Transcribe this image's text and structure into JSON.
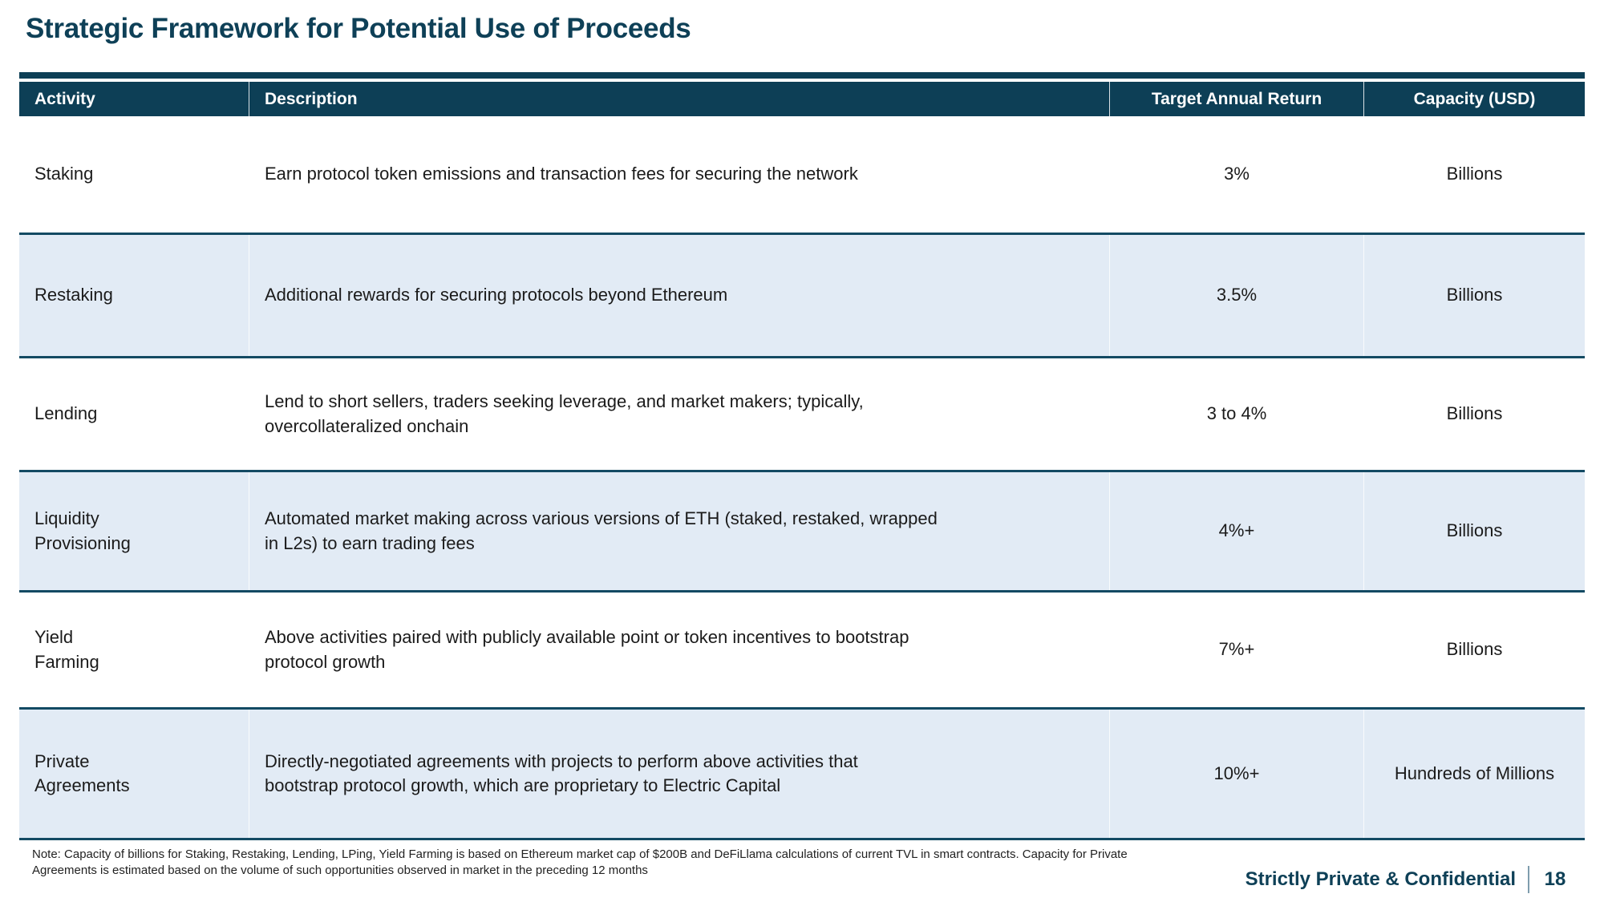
{
  "slide": {
    "title": "Strategic Framework for Potential Use of Proceeds",
    "footnote": "Note: Capacity of billions for Staking, Restaking, Lending, LPing, Yield Farming is based on Ethereum market cap of $200B and DeFiLlama calculations of current TVL in smart contracts. Capacity for Private\nAgreements is estimated based on the volume of such opportunities observed in market in the preceding 12 months",
    "footer": {
      "confidential_label": "Strictly Private & Confidential",
      "page_number": "18"
    }
  },
  "table": {
    "columns": [
      "Activity",
      "Description",
      "Target Annual Return",
      "Capacity (USD)"
    ],
    "rows": [
      {
        "activity": "Staking",
        "description": "Earn protocol token emissions and transaction fees for securing the network",
        "target_return": "3%",
        "capacity": "Billions"
      },
      {
        "activity": "Restaking",
        "description": "Additional rewards for securing protocols beyond Ethereum",
        "target_return": "3.5%",
        "capacity": "Billions"
      },
      {
        "activity": "Lending",
        "description": "Lend to short sellers, traders seeking leverage, and market makers; typically,\novercollateralized onchain",
        "target_return": "3 to 4%",
        "capacity": "Billions"
      },
      {
        "activity": "Liquidity\nProvisioning",
        "description": "Automated market making across various versions of ETH (staked, restaked, wrapped\nin L2s) to earn trading fees",
        "target_return": "4%+",
        "capacity": "Billions"
      },
      {
        "activity": "Yield\nFarming",
        "description": "Above activities paired with publicly available point or token incentives to bootstrap\nprotocol growth",
        "target_return": "7%+",
        "capacity": "Billions"
      },
      {
        "activity": "Private\nAgreements",
        "description": "Directly-negotiated agreements with projects to perform above activities that\nbootstrap protocol growth, which are proprietary to Electric Capital",
        "target_return": "10%+",
        "capacity": "Hundreds of Millions"
      }
    ]
  },
  "colors": {
    "header_bg": "#0d3f56",
    "alt_row_bg": "#e2ebf5",
    "row_border": "#134a63",
    "title_text": "#0e4057",
    "body_text": "#1b1b1b",
    "footer_separator": "#7f9dae"
  }
}
